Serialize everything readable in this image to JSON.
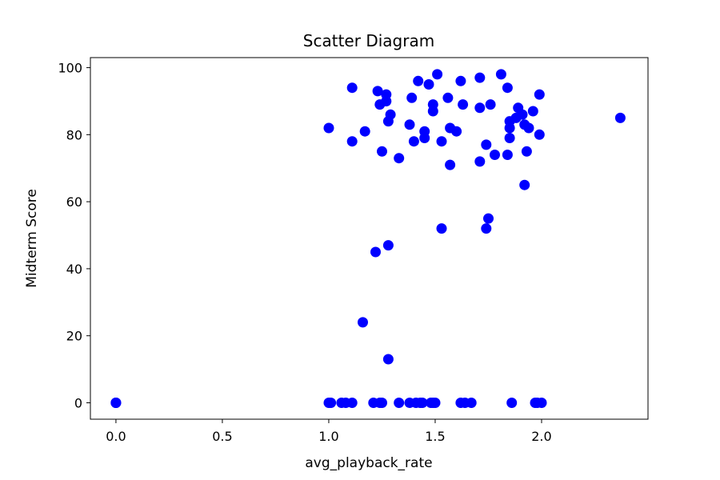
{
  "chart_data": {
    "type": "scatter",
    "title": "Scatter Diagram",
    "xlabel": "avg_playback_rate",
    "ylabel": "Midterm Score",
    "xlim": [
      -0.12,
      2.5
    ],
    "ylim": [
      -4.9,
      103
    ],
    "xticks": [
      0.0,
      0.5,
      1.0,
      1.5,
      2.0
    ],
    "xtick_labels": [
      "0.0",
      "0.5",
      "1.0",
      "1.5",
      "2.0"
    ],
    "yticks": [
      0,
      20,
      40,
      60,
      80,
      100
    ],
    "ytick_labels": [
      "0",
      "20",
      "40",
      "60",
      "80",
      "100"
    ],
    "grid": false,
    "marker_color": "#0000ff",
    "series": [
      {
        "points": [
          [
            0.0,
            0
          ],
          [
            0.0,
            0
          ],
          [
            0.0,
            0
          ],
          [
            1.0,
            0
          ],
          [
            1.01,
            0
          ],
          [
            1.06,
            0
          ],
          [
            1.08,
            0
          ],
          [
            1.11,
            0
          ],
          [
            1.21,
            0
          ],
          [
            1.24,
            0
          ],
          [
            1.25,
            0
          ],
          [
            1.33,
            0
          ],
          [
            1.38,
            0
          ],
          [
            1.41,
            0
          ],
          [
            1.43,
            0
          ],
          [
            1.44,
            0
          ],
          [
            1.48,
            0
          ],
          [
            1.49,
            0
          ],
          [
            1.5,
            0
          ],
          [
            1.62,
            0
          ],
          [
            1.64,
            0
          ],
          [
            1.67,
            0
          ],
          [
            1.86,
            0
          ],
          [
            1.97,
            0
          ],
          [
            1.98,
            0
          ],
          [
            2.0,
            0
          ],
          [
            1.28,
            13
          ],
          [
            1.16,
            24
          ],
          [
            1.22,
            45
          ],
          [
            1.28,
            47
          ],
          [
            1.53,
            52
          ],
          [
            1.74,
            52
          ],
          [
            1.75,
            55
          ],
          [
            1.92,
            65
          ],
          [
            1.0,
            82
          ],
          [
            1.11,
            94
          ],
          [
            1.11,
            78
          ],
          [
            1.17,
            81
          ],
          [
            1.23,
            93
          ],
          [
            1.24,
            89
          ],
          [
            1.25,
            75
          ],
          [
            1.27,
            92
          ],
          [
            1.27,
            90
          ],
          [
            1.28,
            84
          ],
          [
            1.29,
            86
          ],
          [
            1.33,
            73
          ],
          [
            1.38,
            83
          ],
          [
            1.39,
            91
          ],
          [
            1.4,
            78
          ],
          [
            1.42,
            96
          ],
          [
            1.45,
            81
          ],
          [
            1.45,
            79
          ],
          [
            1.47,
            95
          ],
          [
            1.49,
            89
          ],
          [
            1.49,
            87
          ],
          [
            1.51,
            98
          ],
          [
            1.53,
            78
          ],
          [
            1.56,
            91
          ],
          [
            1.57,
            82
          ],
          [
            1.57,
            71
          ],
          [
            1.6,
            81
          ],
          [
            1.62,
            96
          ],
          [
            1.63,
            89
          ],
          [
            1.71,
            97
          ],
          [
            1.71,
            72
          ],
          [
            1.71,
            88
          ],
          [
            1.74,
            77
          ],
          [
            1.76,
            89
          ],
          [
            1.78,
            74
          ],
          [
            1.81,
            98
          ],
          [
            1.84,
            94
          ],
          [
            1.84,
            74
          ],
          [
            1.85,
            84
          ],
          [
            1.85,
            82
          ],
          [
            1.85,
            79
          ],
          [
            1.88,
            85
          ],
          [
            1.89,
            88
          ],
          [
            1.91,
            86
          ],
          [
            1.92,
            83
          ],
          [
            1.93,
            75
          ],
          [
            1.94,
            82
          ],
          [
            1.96,
            87
          ],
          [
            1.99,
            92
          ],
          [
            1.99,
            80
          ],
          [
            2.37,
            85
          ]
        ]
      }
    ]
  }
}
